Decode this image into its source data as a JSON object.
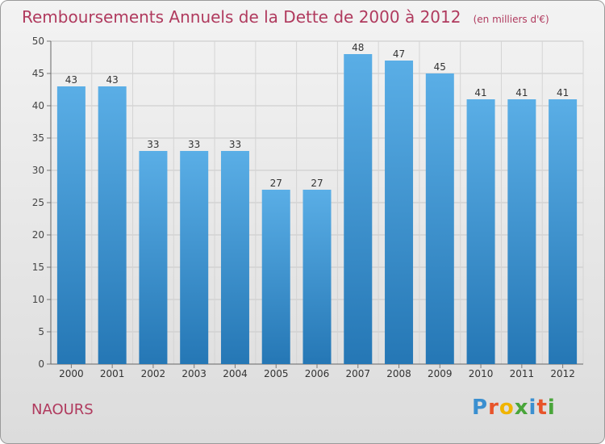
{
  "title": "Remboursements Annuels de la Dette de 2000 à 2012",
  "subtitle": "(en milliers d'€)",
  "location": "NAOURS",
  "logo": {
    "letters": [
      "P",
      "r",
      "o",
      "x",
      "i",
      "t",
      "i"
    ],
    "colors": [
      "#3a8fd0",
      "#e8542a",
      "#f0b400",
      "#49a53a",
      "#3a8fd0",
      "#e8542a",
      "#49a53a"
    ]
  },
  "colors": {
    "bar_top": "#5aaee6",
    "bar_bottom": "#2577b5",
    "title": "#b03a5e"
  },
  "chart_data": {
    "type": "bar",
    "categories": [
      "2000",
      "2001",
      "2002",
      "2003",
      "2004",
      "2005",
      "2006",
      "2007",
      "2008",
      "2009",
      "2010",
      "2011",
      "2012"
    ],
    "values": [
      43,
      43,
      33,
      33,
      33,
      27,
      27,
      48,
      47,
      45,
      41,
      41,
      41
    ],
    "title": "Remboursements Annuels de la Dette de 2000 à 2012",
    "subtitle": "(en milliers d'€)",
    "ylim": [
      0,
      50
    ],
    "yticks": [
      0,
      5,
      10,
      15,
      20,
      25,
      30,
      35,
      40,
      45,
      50
    ],
    "grid": true,
    "data_labels": true
  }
}
